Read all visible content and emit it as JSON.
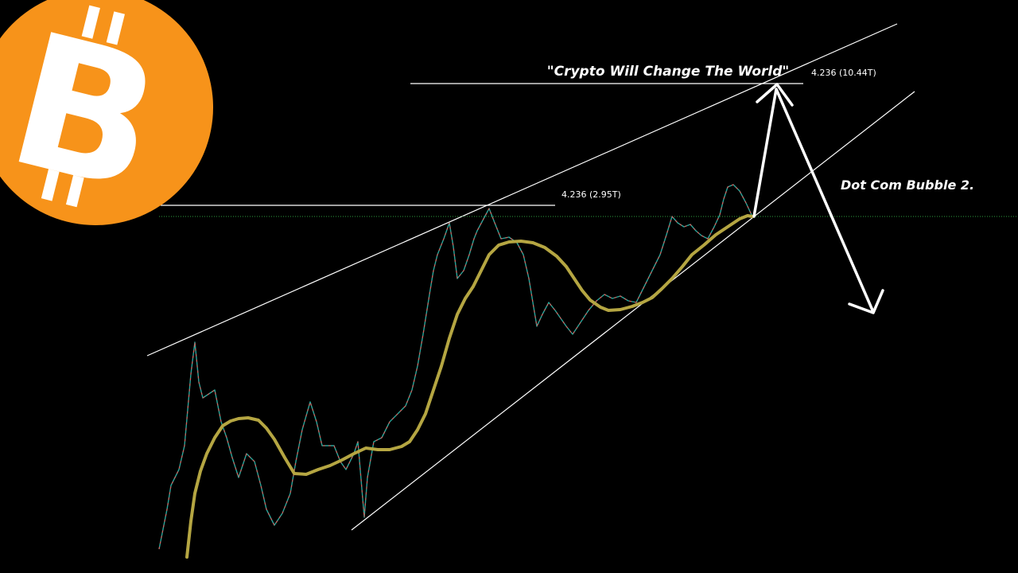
{
  "logo": {
    "symbol": "B"
  },
  "annotations": {
    "headline": "\"Crypto Will Change The World\"",
    "upper_target": "4.236 (10.44T)",
    "previous_target": "4.236 (2.95T)",
    "forecast": "Dot Com Bubble 2."
  }
}
